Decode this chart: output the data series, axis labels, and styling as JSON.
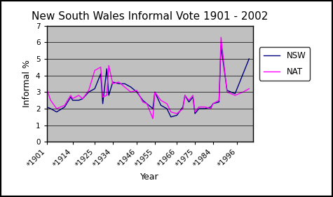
{
  "title": "New South Wales Informal Vote 1901 - 2002",
  "xlabel": "Year",
  "ylabel": "Informal %",
  "xlim_labels": [
    "*1901",
    "*1914",
    "*1925",
    "*1934",
    "*1946",
    "*1955",
    "*1966",
    "*1975",
    "*1984",
    "*1996"
  ],
  "ylim": [
    0,
    7
  ],
  "yticks": [
    0,
    1,
    2,
    3,
    4,
    5,
    6,
    7
  ],
  "background_color": "#c0c0c0",
  "years": [
    1901,
    1903,
    1906,
    1910,
    1913,
    1914,
    1917,
    1919,
    1922,
    1925,
    1928,
    1929,
    1931,
    1932,
    1934,
    1937,
    1940,
    1943,
    1946,
    1949,
    1951,
    1954,
    1955,
    1958,
    1961,
    1963,
    1966,
    1969,
    1970,
    1972,
    1974,
    1975,
    1977,
    1980,
    1983,
    1984,
    1987,
    1988,
    1991,
    1995,
    1999,
    2002
  ],
  "nsw": [
    2.1,
    2.0,
    1.8,
    2.1,
    2.7,
    2.5,
    2.5,
    2.6,
    3.0,
    3.2,
    4.1,
    2.3,
    4.4,
    2.8,
    3.6,
    3.5,
    3.5,
    3.3,
    3.0,
    2.5,
    2.3,
    2.0,
    3.0,
    2.2,
    2.0,
    1.5,
    1.6,
    2.1,
    2.8,
    2.4,
    2.7,
    1.7,
    2.0,
    2.0,
    2.1,
    2.3,
    2.4,
    5.8,
    3.1,
    2.9,
    4.1,
    5.0
  ],
  "nat": [
    3.2,
    2.5,
    2.0,
    2.2,
    2.8,
    2.6,
    2.8,
    2.6,
    3.1,
    4.3,
    4.5,
    2.7,
    2.8,
    4.6,
    3.5,
    3.6,
    3.3,
    3.0,
    3.1,
    2.4,
    2.3,
    1.4,
    3.0,
    2.5,
    2.3,
    1.8,
    1.7,
    2.0,
    2.8,
    2.5,
    2.8,
    1.8,
    2.1,
    2.1,
    2.0,
    2.3,
    2.5,
    6.3,
    3.0,
    2.8,
    3.0,
    3.2
  ],
  "nsw_color": "#000080",
  "nat_color": "#ff00ff",
  "legend_labels": [
    "NSW",
    "NAT"
  ],
  "border_color": "#000000",
  "title_fontsize": 11,
  "label_fontsize": 9,
  "tick_fontsize": 7.5
}
